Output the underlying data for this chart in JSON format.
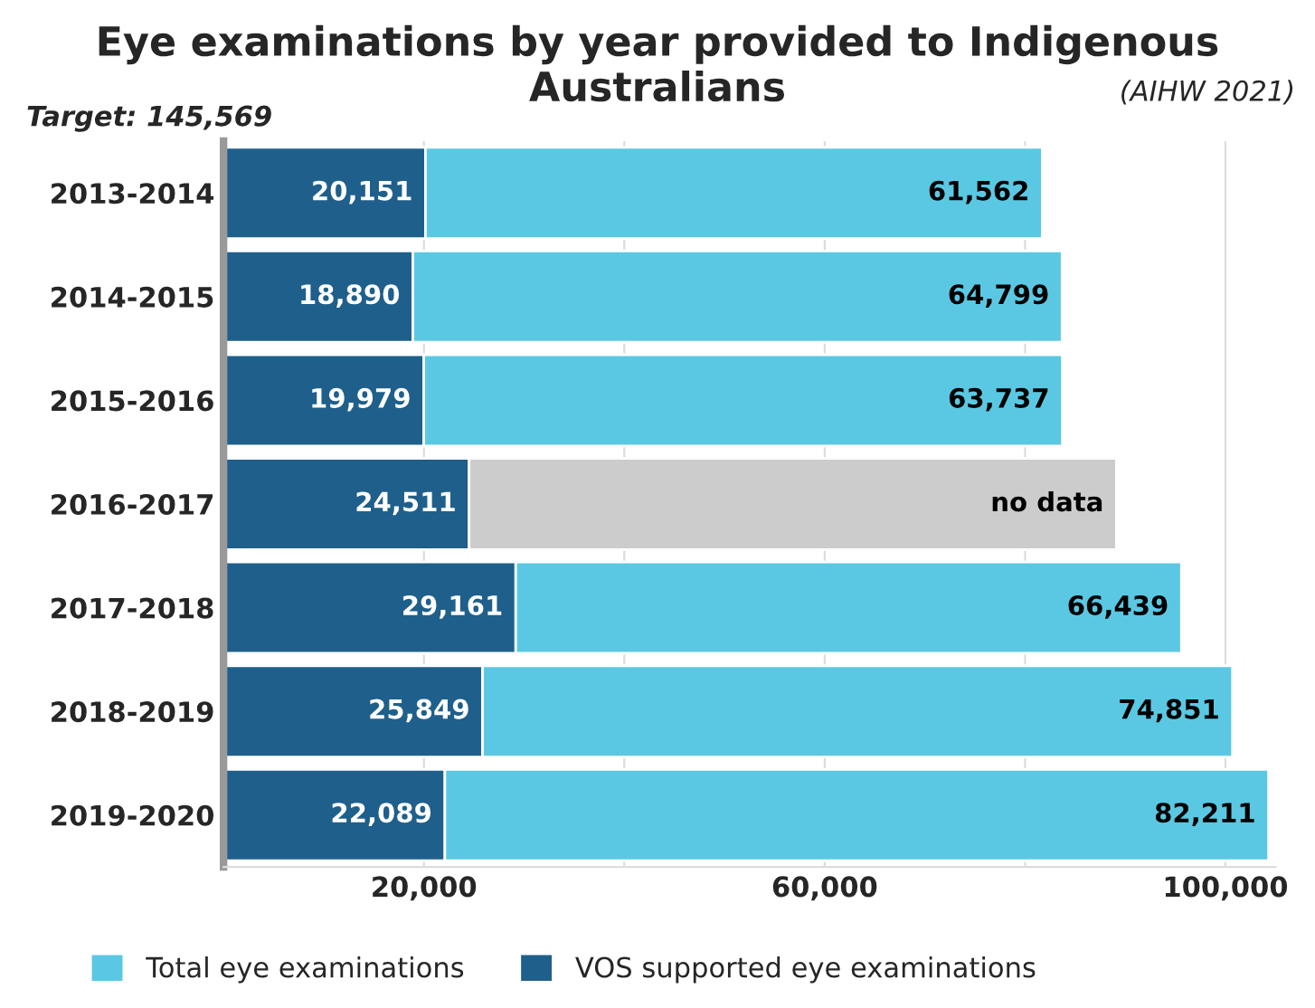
{
  "chart_data": {
    "type": "bar",
    "orientation": "horizontal",
    "stacked": true,
    "title": "Eye examinations by year provided to Indigenous Australians",
    "annotations": [
      "(AIHW 2021)",
      "Target: 145,569"
    ],
    "categories": [
      "2013-2014",
      "2014-2015",
      "2015-2016",
      "2016-2017",
      "2017-2018",
      "2018-2019",
      "2019-2020"
    ],
    "series": [
      {
        "name": "VOS supported eye examinations",
        "color": "#1f5f8b",
        "values": [
          20151,
          18890,
          19979,
          24511,
          29161,
          25849,
          22089
        ],
        "value_labels": [
          "20,151",
          "18,890",
          "19,979",
          "24,511",
          "29,161",
          "25,849",
          "22,089"
        ]
      },
      {
        "name": "Total eye examinations",
        "color": "#5bc8e3",
        "values": [
          61562,
          64799,
          63737,
          null,
          66439,
          74851,
          82211
        ],
        "value_labels": [
          "61,562",
          "64,799",
          "63,737",
          null,
          "66,439",
          "74,851",
          "82,211"
        ]
      },
      {
        "color": "#cccccc",
        "values": [
          null,
          null,
          null,
          64600,
          null,
          null,
          null
        ],
        "value_labels": [
          null,
          null,
          null,
          "no data",
          null,
          null,
          null
        ]
      }
    ],
    "xlim": [
      0,
      105000
    ],
    "xticks": [
      {
        "value": 20000,
        "label": "20,000"
      },
      {
        "value": 40000,
        "label": null
      },
      {
        "value": 60000,
        "label": "60,000"
      },
      {
        "value": 80000,
        "label": null
      },
      {
        "value": 100000,
        "label": "100,000"
      }
    ],
    "grid": "x",
    "legend": "bottom"
  }
}
